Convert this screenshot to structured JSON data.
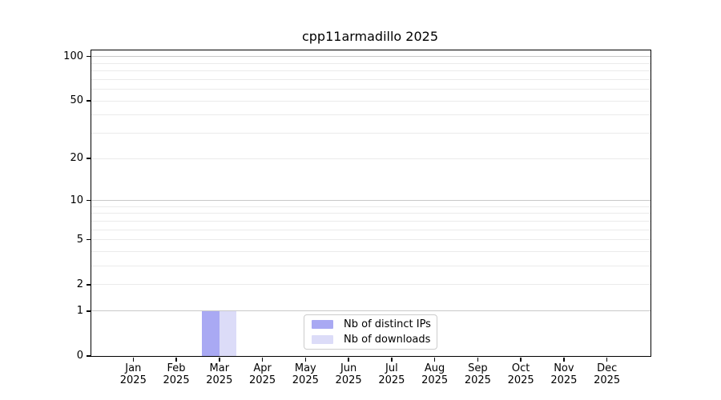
{
  "chart_data": {
    "type": "bar",
    "title": "cpp11armadillo 2025",
    "categories": [
      "Jan 2025",
      "Feb 2025",
      "Mar 2025",
      "Apr 2025",
      "May 2025",
      "Jun 2025",
      "Jul 2025",
      "Aug 2025",
      "Sep 2025",
      "Oct 2025",
      "Nov 2025",
      "Dec 2025"
    ],
    "series": [
      {
        "name": "Nb of distinct IPs",
        "color": "#a9a9f3",
        "values": [
          0,
          0,
          1,
          0,
          0,
          0,
          0,
          0,
          0,
          0,
          0,
          0
        ]
      },
      {
        "name": "Nb of downloads",
        "color": "#dcdcf8",
        "values": [
          0,
          0,
          1,
          0,
          0,
          0,
          0,
          0,
          0,
          0,
          0,
          0
        ]
      }
    ],
    "y_scale": "log1p",
    "ylim": [
      0,
      110
    ],
    "y_tick_values": [
      0,
      1,
      2,
      5,
      10,
      20,
      50,
      100
    ],
    "y_major_gridlines": [
      1,
      10,
      100
    ],
    "y_minor_gridlines": [
      2,
      3,
      4,
      5,
      6,
      7,
      8,
      9,
      20,
      30,
      40,
      50,
      60,
      70,
      80,
      90
    ],
    "grid": true,
    "legend_position": "lower center"
  },
  "legend": {
    "items": [
      {
        "label": "Nb of distinct IPs",
        "color": "#a9a9f3"
      },
      {
        "label": "Nb of downloads",
        "color": "#dcdcf8"
      }
    ]
  },
  "colors": {
    "grid_major": "#c9c9c9",
    "grid_minor": "#ebebeb",
    "axis": "#000000",
    "background": "#ffffff"
  }
}
